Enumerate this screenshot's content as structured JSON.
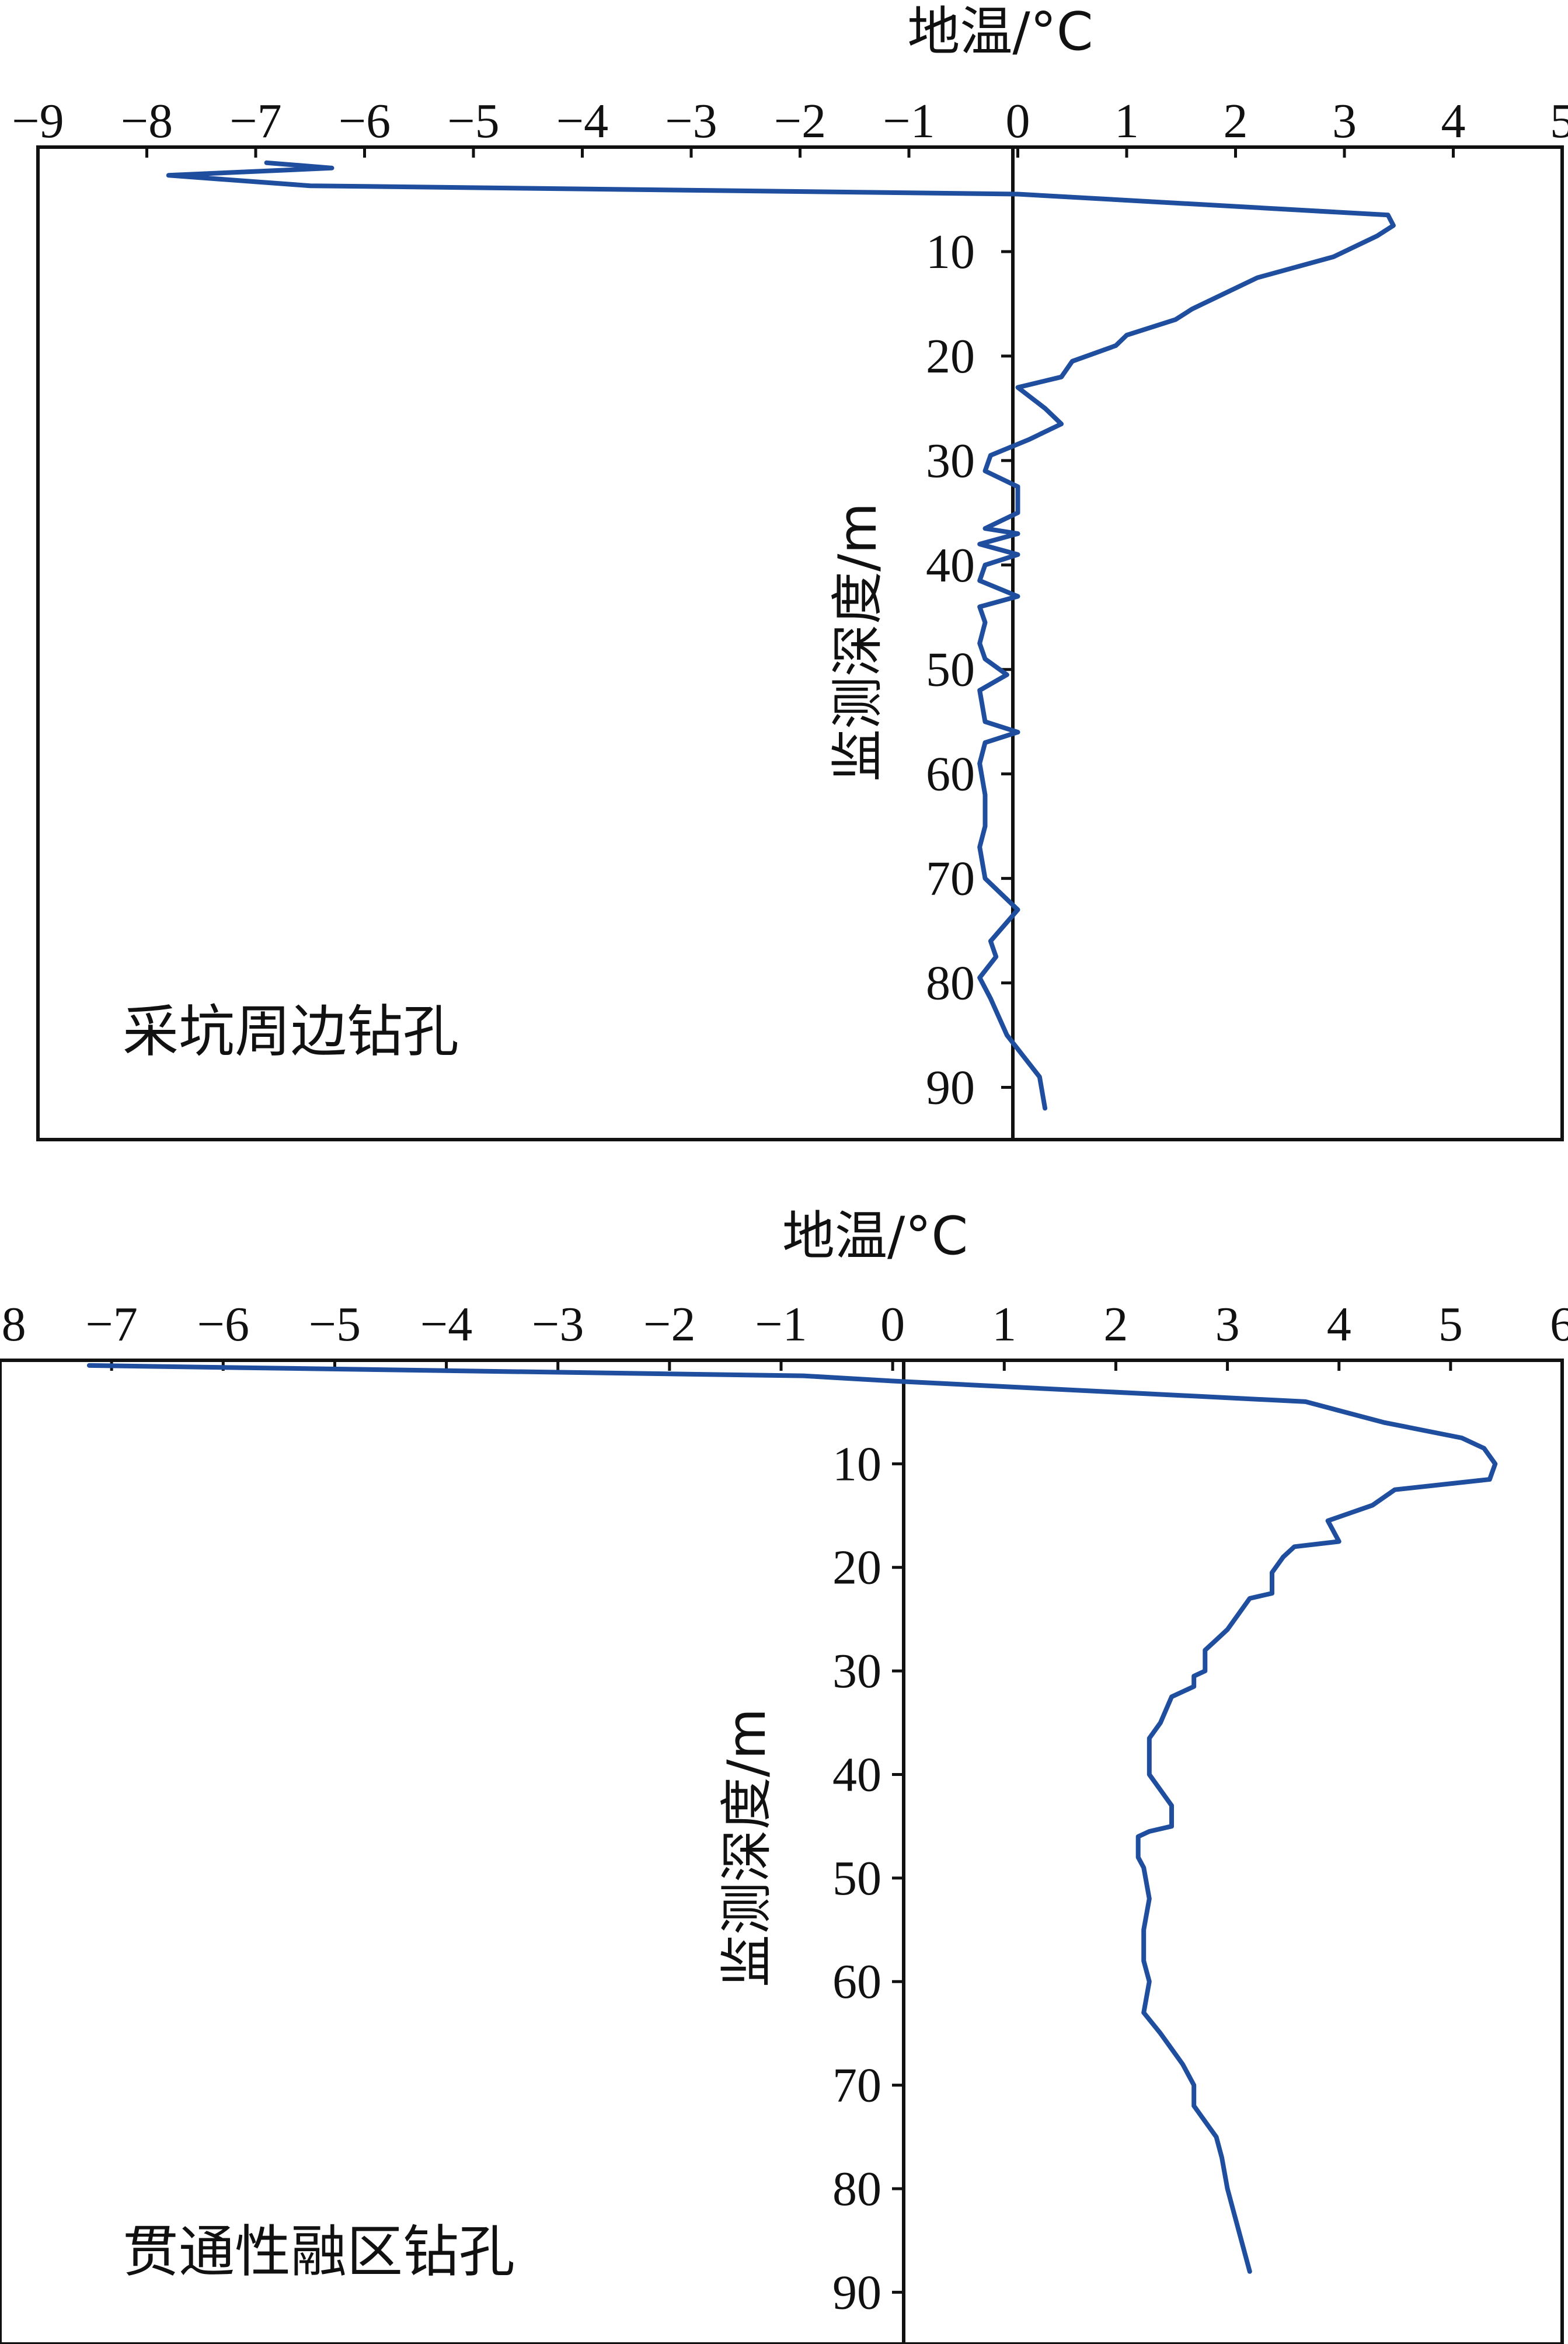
{
  "chart_data": [
    {
      "type": "line",
      "title": "",
      "xlabel": "地温/°C",
      "ylabel": "监测深度/m",
      "annotation": "采坑周边钻孔",
      "xlim": [
        -9,
        5
      ],
      "ylim": [
        0,
        95
      ],
      "y_inverted": true,
      "x_axis_position": "top",
      "x_ticks": [
        -9,
        -8,
        -7,
        -6,
        -5,
        -4,
        -3,
        -2,
        -1,
        0,
        1,
        2,
        3,
        4,
        5
      ],
      "x_tick_labels": [
        "−9",
        "−8",
        "−7",
        "−6",
        "−5",
        "−4",
        "−3",
        "−2",
        "−1",
        "0",
        "1",
        "2",
        "3",
        "4",
        "5"
      ],
      "y_ticks": [
        10,
        20,
        30,
        40,
        50,
        60,
        70,
        80,
        90
      ],
      "y_tick_labels": [
        "10",
        "20",
        "30",
        "40",
        "50",
        "60",
        "70",
        "80",
        "90"
      ],
      "line_color": "#1f4e9e",
      "series": [
        {
          "x": [
            -6.9,
            -6.3,
            -7.8,
            -6.5,
            0.0,
            3.4,
            3.45,
            3.3,
            2.9,
            2.2,
            1.9,
            1.6,
            1.45,
            1.0,
            0.9,
            0.5,
            0.4,
            0.0,
            0.25,
            0.4,
            0.1,
            -0.25,
            -0.3,
            0.0,
            0.0,
            -0.3,
            0.0,
            -0.35,
            0.0,
            -0.3,
            -0.35,
            0.0,
            -0.35,
            -0.3,
            -0.35,
            -0.3,
            -0.1,
            -0.35,
            -0.3,
            0.0,
            -0.3,
            -0.35,
            -0.3,
            -0.3,
            -0.35,
            -0.3,
            0.0,
            -0.25,
            -0.2,
            -0.35,
            -0.25,
            -0.1,
            0.05,
            0.2,
            0.25
          ],
          "y": [
            1.5,
            2.0,
            2.7,
            3.7,
            4.5,
            6.5,
            7.5,
            8.5,
            10.5,
            12.5,
            14.0,
            15.5,
            16.5,
            18.0,
            19.0,
            20.5,
            22.0,
            23.0,
            25.0,
            26.5,
            28.0,
            29.5,
            31.0,
            32.5,
            35.0,
            36.5,
            37.0,
            38.0,
            39.0,
            40.0,
            41.5,
            43.0,
            44.0,
            45.5,
            47.5,
            49.0,
            50.5,
            52.0,
            55.0,
            56.0,
            57.0,
            59.0,
            62.0,
            65.0,
            67.0,
            70.0,
            73.0,
            76.0,
            77.5,
            79.5,
            81.5,
            85.0,
            87.0,
            89.0,
            92.0
          ]
        }
      ]
    },
    {
      "type": "line",
      "title": "",
      "xlabel": "地温/°C",
      "ylabel": "监测深度/m",
      "annotation": "贯通性融区钻孔",
      "xlim": [
        -8,
        6
      ],
      "ylim": [
        0,
        95
      ],
      "y_inverted": true,
      "x_axis_position": "top",
      "x_ticks": [
        -8,
        -7,
        -6,
        -5,
        -4,
        -3,
        -2,
        -1,
        0,
        1,
        2,
        3,
        4,
        5,
        6
      ],
      "x_tick_labels": [
        "−8",
        "−7",
        "−6",
        "−5",
        "−4",
        "−3",
        "−2",
        "−1",
        "0",
        "1",
        "2",
        "3",
        "4",
        "5",
        "6"
      ],
      "y_ticks": [
        10,
        20,
        30,
        40,
        50,
        60,
        70,
        80,
        90
      ],
      "y_tick_labels": [
        "10",
        "20",
        "30",
        "40",
        "50",
        "60",
        "70",
        "80",
        "90"
      ],
      "line_color": "#1f4e9e",
      "series": [
        {
          "x": [
            -7.2,
            -0.8,
            0.0,
            3.7,
            4.4,
            5.1,
            5.3,
            5.4,
            5.35,
            4.5,
            4.3,
            3.9,
            4.0,
            3.6,
            3.5,
            3.4,
            3.4,
            3.2,
            3.1,
            3.0,
            2.9,
            2.8,
            2.8,
            2.7,
            2.7,
            2.5,
            2.4,
            2.3,
            2.3,
            2.3,
            2.4,
            2.5,
            2.5,
            2.3,
            2.2,
            2.2,
            2.2,
            2.25,
            2.3,
            2.25,
            2.25,
            2.3,
            2.25,
            2.4,
            2.5,
            2.6,
            2.7,
            2.7,
            2.8,
            2.9,
            2.95,
            3.0,
            3.05,
            3.1,
            3.2
          ],
          "y": [
            0.5,
            1.5,
            2.0,
            4.0,
            6.0,
            7.5,
            8.5,
            10.0,
            11.5,
            12.5,
            14.0,
            15.5,
            17.5,
            18.0,
            19.0,
            20.5,
            22.5,
            23.0,
            24.5,
            26.0,
            27.0,
            28.0,
            30.0,
            30.5,
            31.5,
            32.5,
            35.0,
            36.5,
            38.0,
            40.0,
            41.5,
            43.0,
            45.0,
            45.5,
            46.0,
            47.0,
            48.0,
            49.0,
            52.0,
            55.0,
            58.0,
            60.0,
            63.0,
            65.0,
            66.5,
            68.0,
            70.0,
            72.0,
            73.5,
            75.0,
            77.0,
            80.0,
            82.0,
            84.0,
            88.0
          ]
        }
      ]
    }
  ]
}
